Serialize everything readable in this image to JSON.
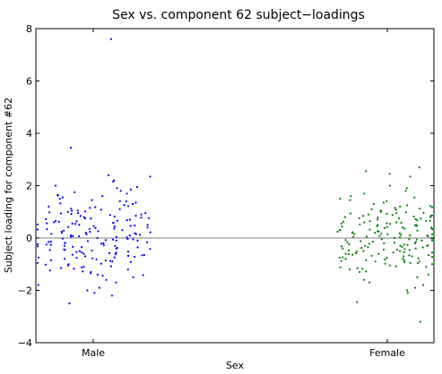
{
  "chart_data": {
    "type": "scatter",
    "title": "Sex vs. component 62 subject−loadings",
    "xlabel": "Sex",
    "ylabel": "Subject loading for component #62",
    "categories": [
      "Male",
      "Female"
    ],
    "ylim": [
      -4,
      8
    ],
    "yticks": [
      "−4",
      "−2",
      "0",
      "2",
      "4",
      "6",
      "8"
    ],
    "yticks_values": [
      -4,
      -2,
      0,
      2,
      4,
      6,
      8
    ],
    "reference_line_y": 0,
    "grid": false,
    "legend": "none",
    "series": [
      {
        "category": "Male",
        "color": "#0000ff",
        "values": [
          7.6,
          3.45,
          2.4,
          2.35,
          2.2,
          2.15,
          2.0,
          1.95,
          1.9,
          1.85,
          1.8,
          1.75,
          1.7,
          1.65,
          1.6,
          1.55,
          1.5,
          1.4,
          1.35,
          1.3,
          1.2,
          1.15,
          1.1,
          1.05,
          1.0,
          0.95,
          0.9,
          0.85,
          0.8,
          0.75,
          0.7,
          0.65,
          0.6,
          0.55,
          0.5,
          0.45,
          0.4,
          0.35,
          0.3,
          0.25,
          0.2,
          0.15,
          0.1,
          0.05,
          0.0,
          -0.05,
          -0.1,
          -0.15,
          -0.2,
          -0.25,
          -0.3,
          -0.35,
          -0.4,
          -0.45,
          -0.5,
          -0.55,
          -0.6,
          -0.65,
          -0.7,
          -0.75,
          -0.8,
          -0.85,
          -0.9,
          -0.95,
          -1.0,
          -1.05,
          -1.1,
          -1.15,
          -1.2,
          -1.3,
          -1.4,
          -1.5,
          -1.6,
          -1.7,
          -1.8,
          -1.9,
          -2.0,
          -2.1,
          -2.2,
          -2.5,
          1.45,
          0.95,
          0.62,
          0.38,
          0.12,
          -0.08,
          -0.32,
          -0.58,
          -0.88,
          -1.12,
          1.22,
          0.82,
          0.42,
          0.02,
          -0.42,
          -0.78,
          1.62,
          1.08,
          0.58,
          0.18,
          -0.22,
          -0.62,
          -1.02,
          -1.42,
          0.72,
          0.28,
          -0.12,
          -0.52,
          0.92,
          0.48,
          -0.02,
          -0.68,
          -1.28,
          1.02,
          0.52,
          0.08,
          -0.38,
          -0.92,
          0.68,
          0.22,
          -0.28,
          -0.72,
          1.12,
          0.32,
          -0.18,
          -0.82,
          0.88,
          0.44,
          -0.06,
          -0.48,
          -1.08,
          0.78,
          0.36,
          -0.26,
          -0.98,
          1.32,
          0.58,
          0.14,
          -0.34,
          -0.74,
          0.64,
          0.06,
          -0.44,
          -1.18,
          0.98,
          0.26,
          -0.16,
          -0.56,
          1.18,
          0.46,
          -0.04,
          -0.64,
          -1.34,
          0.74,
          0.16,
          -0.36,
          0.54,
          -0.24,
          -0.86,
          0.84,
          0.34,
          -0.14,
          -0.46,
          -1.24,
          1.26,
          0.66,
          0.04,
          -0.54,
          0.94,
          0.24,
          -0.66,
          1.04,
          0.56,
          -0.1,
          -0.76,
          0.76,
          0.2,
          -0.3,
          -1.44,
          0.5,
          -0.2,
          1.4,
          0.1
        ]
      },
      {
        "category": "Female",
        "color": "#008000",
        "values": [
          2.7,
          2.55,
          2.45,
          2.35,
          2.0,
          1.9,
          1.8,
          1.7,
          1.6,
          1.55,
          1.5,
          1.45,
          1.4,
          1.35,
          1.3,
          1.25,
          1.2,
          1.15,
          1.1,
          1.05,
          1.0,
          0.95,
          0.9,
          0.85,
          0.8,
          0.75,
          0.7,
          0.65,
          0.6,
          0.55,
          0.5,
          0.45,
          0.4,
          0.35,
          0.3,
          0.25,
          0.2,
          0.15,
          0.1,
          0.05,
          0.0,
          -0.05,
          -0.1,
          -0.15,
          -0.2,
          -0.25,
          -0.3,
          -0.35,
          -0.4,
          -0.45,
          -0.5,
          -0.55,
          -0.6,
          -0.65,
          -0.7,
          -0.75,
          -0.8,
          -0.85,
          -0.9,
          -0.95,
          -1.0,
          -1.05,
          -1.1,
          -1.15,
          -1.2,
          -1.3,
          -1.4,
          -1.5,
          -1.6,
          -1.7,
          -1.8,
          -1.9,
          -2.0,
          -2.1,
          -2.45,
          -3.2,
          1.12,
          0.82,
          0.52,
          0.22,
          -0.08,
          -0.38,
          -0.68,
          -0.98,
          0.92,
          0.62,
          0.32,
          0.02,
          -0.28,
          -0.58,
          -0.88,
          -1.18,
          0.72,
          0.42,
          0.12,
          -0.18,
          -0.48,
          -0.78,
          1.02,
          0.58,
          0.18,
          -0.22,
          -0.62,
          -1.08,
          0.88,
          0.48,
          0.08,
          -0.32,
          -0.72,
          0.68,
          0.28,
          -0.12,
          -0.52,
          -0.92,
          1.22,
          0.78,
          0.38,
          -0.02,
          -0.42,
          -0.82,
          0.98,
          0.54,
          0.14,
          -0.26,
          -0.66,
          -1.28,
          0.84,
          0.44,
          0.04,
          -0.36,
          -0.76,
          0.64,
          0.24,
          -0.16,
          -0.56,
          -0.96,
          1.08,
          0.34,
          -0.06,
          -0.46,
          0.74,
          0.14,
          -0.34,
          -0.86,
          0.94,
          0.46,
          -0.14,
          -0.54,
          0.56,
          0.06,
          -0.44,
          -1.12,
          0.36,
          -0.24,
          -0.64,
          0.86,
          0.26,
          -0.04,
          -0.74,
          0.66,
          0.16,
          -0.3,
          1.18,
          0.5,
          -0.2,
          -0.9,
          0.76,
          0.1,
          -0.4,
          0.3,
          -0.1,
          -0.6,
          0.96,
          0.4,
          -0.5,
          0.2,
          -0.8,
          0.6,
          0.0,
          -0.7,
          0.8,
          -0.3
        ]
      }
    ]
  }
}
